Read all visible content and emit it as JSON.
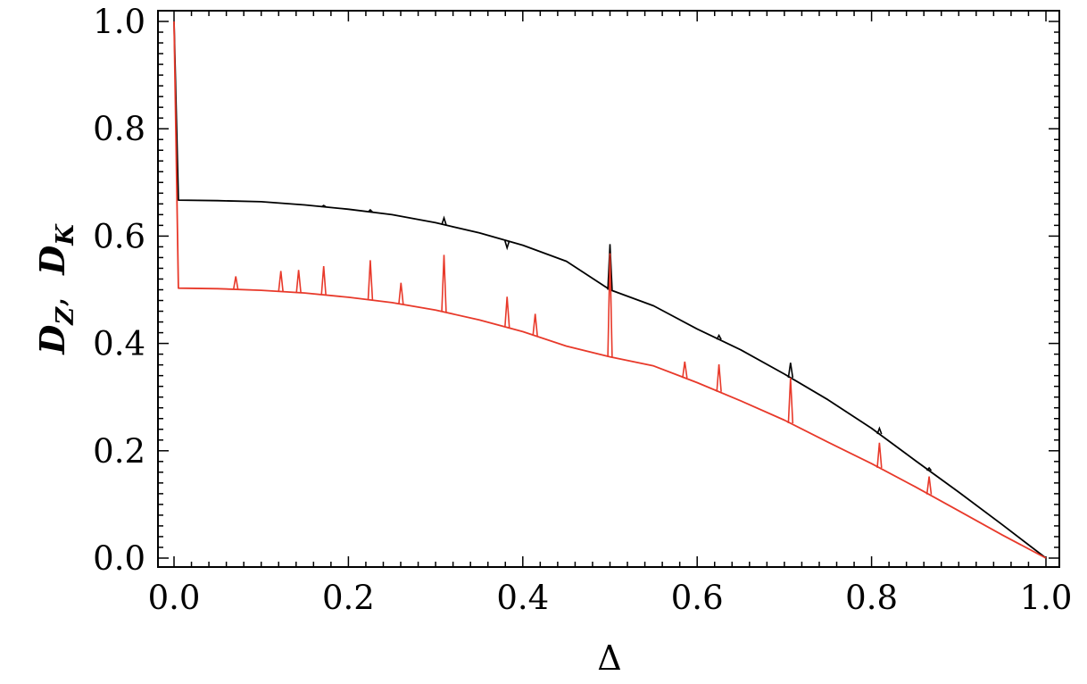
{
  "chart_data": {
    "type": "line",
    "xlabel": "Δ",
    "ylabel": "D_Z,  D_K",
    "ylabel_parts": {
      "d1": "D",
      "sub1": "Z",
      "sep": ",  ",
      "d2": "D",
      "sub2": "K"
    },
    "xlim": [
      0.0,
      1.0
    ],
    "ylim": [
      0.0,
      1.0
    ],
    "xticks": [
      "0.0",
      "0.2",
      "0.4",
      "0.6",
      "0.8",
      "1.0"
    ],
    "yticks": [
      "0.0",
      "0.2",
      "0.4",
      "0.6",
      "0.8",
      "1.0"
    ],
    "grid": false,
    "legend": "none",
    "series": [
      {
        "color": "#000000",
        "x": [
          0.0,
          0.005,
          0.05,
          0.1,
          0.15,
          0.2,
          0.25,
          0.3,
          0.35,
          0.4,
          0.45,
          0.5,
          0.55,
          0.6,
          0.65,
          0.7,
          0.75,
          0.8,
          0.85,
          0.9,
          0.95,
          1.0
        ],
        "y": [
          1.0,
          0.667,
          0.666,
          0.664,
          0.658,
          0.65,
          0.64,
          0.625,
          0.606,
          0.583,
          0.553,
          0.5,
          0.47,
          0.427,
          0.388,
          0.343,
          0.295,
          0.242,
          0.182,
          0.123,
          0.062,
          0.0
        ],
        "spikes": [
          {
            "x": 0.1716,
            "y": 0.657
          },
          {
            "x": 0.2251,
            "y": 0.649
          },
          {
            "x": 0.3096,
            "y": 0.634
          },
          {
            "x": 0.382,
            "y": 0.578
          },
          {
            "x": 0.5,
            "y": 0.585
          },
          {
            "x": 0.625,
            "y": 0.415
          },
          {
            "x": 0.7071,
            "y": 0.364
          },
          {
            "x": 0.809,
            "y": 0.242
          },
          {
            "x": 0.866,
            "y": 0.168
          }
        ]
      },
      {
        "color": "#e8392a",
        "x": [
          0.0,
          0.005,
          0.05,
          0.1,
          0.15,
          0.2,
          0.25,
          0.3,
          0.35,
          0.4,
          0.45,
          0.5,
          0.55,
          0.6,
          0.65,
          0.7,
          0.75,
          0.8,
          0.85,
          0.9,
          0.95,
          1.0
        ],
        "y": [
          1.0,
          0.503,
          0.502,
          0.499,
          0.494,
          0.486,
          0.476,
          0.462,
          0.444,
          0.422,
          0.395,
          0.375,
          0.358,
          0.327,
          0.293,
          0.257,
          0.216,
          0.176,
          0.133,
          0.088,
          0.043,
          0.0
        ],
        "spikes": [
          {
            "x": 0.0708,
            "y": 0.525
          },
          {
            "x": 0.1225,
            "y": 0.535
          },
          {
            "x": 0.1429,
            "y": 0.537
          },
          {
            "x": 0.1716,
            "y": 0.544
          },
          {
            "x": 0.2251,
            "y": 0.555
          },
          {
            "x": 0.2603,
            "y": 0.513
          },
          {
            "x": 0.3096,
            "y": 0.565
          },
          {
            "x": 0.382,
            "y": 0.487
          },
          {
            "x": 0.4142,
            "y": 0.455
          },
          {
            "x": 0.5,
            "y": 0.568
          },
          {
            "x": 0.5858,
            "y": 0.366
          },
          {
            "x": 0.625,
            "y": 0.361
          },
          {
            "x": 0.7071,
            "y": 0.336
          },
          {
            "x": 0.809,
            "y": 0.215
          },
          {
            "x": 0.866,
            "y": 0.152
          }
        ]
      }
    ]
  }
}
